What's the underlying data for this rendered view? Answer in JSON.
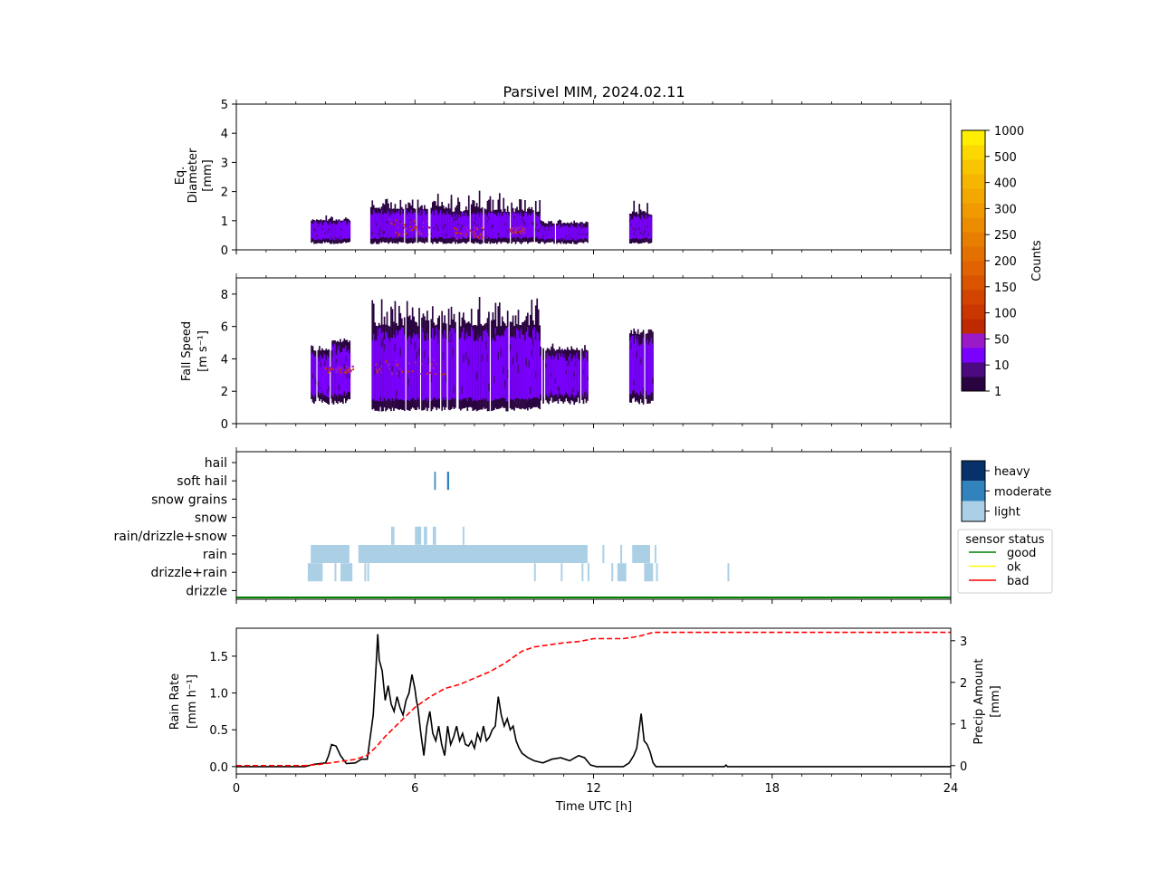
{
  "chart_data": [
    {
      "type": "heatmap",
      "title": "Parsivel MIM, 2024.02.11",
      "ylabel": [
        "Eq.",
        "Diameter",
        "[mm]"
      ],
      "ylim": [
        0,
        5
      ],
      "yticks": [
        0,
        1,
        2,
        3,
        4,
        5
      ],
      "xlim": [
        0,
        24
      ],
      "segments": [
        {
          "t0": 2.5,
          "t1": 3.2,
          "ylo": 0.3,
          "yhi": 1.0,
          "peak": 1.2
        },
        {
          "t0": 3.2,
          "t1": 3.8,
          "ylo": 0.3,
          "yhi": 1.0,
          "peak": 1.2
        },
        {
          "t0": 4.5,
          "t1": 7.2,
          "ylo": 0.3,
          "yhi": 1.4,
          "peak": 2.0
        },
        {
          "t0": 7.2,
          "t1": 10.2,
          "ylo": 0.3,
          "yhi": 1.3,
          "peak": 2.2
        },
        {
          "t0": 10.2,
          "t1": 11.8,
          "ylo": 0.3,
          "yhi": 0.9,
          "peak": 1.1
        },
        {
          "t0": 13.2,
          "t1": 14.0,
          "ylo": 0.3,
          "yhi": 1.2,
          "peak": 1.8
        }
      ],
      "hotspots": [
        {
          "t": 5.8,
          "y": 0.8,
          "r": 0.7
        },
        {
          "t": 7.8,
          "y": 0.6,
          "r": 0.5
        },
        {
          "t": 9.4,
          "y": 0.7,
          "r": 0.3
        }
      ]
    },
    {
      "type": "heatmap",
      "ylabel": [
        "Fall Speed",
        "[m s⁻¹]"
      ],
      "ylim": [
        0,
        9
      ],
      "yticks": [
        0,
        2,
        4,
        6,
        8
      ],
      "xlim": [
        0,
        24
      ],
      "segments": [
        {
          "t0": 2.5,
          "t1": 3.2,
          "ylo": 1.5,
          "yhi": 4.5,
          "peak": 5.0
        },
        {
          "t0": 3.2,
          "t1": 3.8,
          "ylo": 1.5,
          "yhi": 5.0,
          "peak": 5.5
        },
        {
          "t0": 4.5,
          "t1": 7.2,
          "ylo": 1.0,
          "yhi": 6.0,
          "peak": 8.0
        },
        {
          "t0": 7.2,
          "t1": 10.2,
          "ylo": 1.0,
          "yhi": 6.0,
          "peak": 8.0
        },
        {
          "t0": 10.2,
          "t1": 11.8,
          "ylo": 1.5,
          "yhi": 4.5,
          "peak": 5.0
        },
        {
          "t0": 13.2,
          "t1": 14.0,
          "ylo": 1.5,
          "yhi": 5.5,
          "peak": 6.0
        }
      ],
      "hotspots": [
        {
          "t": 5.8,
          "y": 3.5,
          "r": 1.2
        },
        {
          "t": 3.4,
          "y": 3.4,
          "r": 0.5
        }
      ]
    },
    {
      "type": "heatmap",
      "ycategories": [
        "hail",
        "soft hail",
        "snow grains",
        "snow",
        "rain/drizzle+snow",
        "rain",
        "drizzle+rain",
        "drizzle"
      ],
      "xlim": [
        0,
        24
      ],
      "blocks": [
        {
          "cat": "rain",
          "t0": 2.5,
          "t1": 3.8,
          "level": "light"
        },
        {
          "cat": "rain",
          "t0": 4.1,
          "t1": 11.8,
          "level": "light"
        },
        {
          "cat": "rain",
          "t0": 13.3,
          "t1": 13.9,
          "level": "light"
        },
        {
          "cat": "drizzle+rain",
          "t0": 2.4,
          "t1": 2.9,
          "level": "light"
        },
        {
          "cat": "drizzle+rain",
          "t0": 3.5,
          "t1": 3.9,
          "level": "light"
        },
        {
          "cat": "drizzle+rain",
          "t0": 12.8,
          "t1": 13.1,
          "level": "light"
        },
        {
          "cat": "drizzle+rain",
          "t0": 13.7,
          "t1": 14.0,
          "level": "light"
        },
        {
          "cat": "soft hail",
          "t0": 6.65,
          "t1": 6.7,
          "level": "moderate"
        },
        {
          "cat": "soft hail",
          "t0": 7.08,
          "t1": 7.15,
          "level": "moderate"
        }
      ],
      "ticks": [
        {
          "cat": "rain/drizzle+snow",
          "t": [
            5.2,
            5.25,
            6.0,
            6.05,
            6.1,
            6.15,
            6.3,
            6.35,
            6.6,
            6.65,
            7.6
          ]
        },
        {
          "cat": "drizzle+rain",
          "t": [
            3.3,
            4.3,
            4.4,
            10.0,
            10.9,
            11.6,
            11.8,
            12.6,
            14.1,
            16.5
          ]
        },
        {
          "cat": "rain",
          "t": [
            12.3,
            12.9,
            14.05
          ]
        }
      ],
      "legend": {
        "levels": [
          "heavy",
          "moderate",
          "light"
        ],
        "colors": [
          "#08306b",
          "#3182bd",
          "#abd0e6"
        ]
      },
      "sensor_status": {
        "title": "sensor status",
        "entries": [
          "good",
          "ok",
          "bad"
        ],
        "colors": [
          "#008000",
          "#ffff00",
          "#ff0000"
        ],
        "current": "good"
      }
    },
    {
      "type": "line",
      "xlabel": "Time UTC [h]",
      "xlim": [
        0,
        24
      ],
      "xticks": [
        0,
        6,
        12,
        18,
        24
      ],
      "ylabel": [
        "Rain Rate",
        "[mm h⁻¹]"
      ],
      "ylim": [
        -0.1,
        1.88
      ],
      "yticks": [
        "0.0",
        "0.5",
        "1.0",
        "1.5"
      ],
      "y2label": [
        "Precip Amount",
        "[mm]"
      ],
      "y2lim": [
        -0.2,
        3.3
      ],
      "y2ticks": [
        0,
        1,
        2,
        3
      ],
      "series": [
        {
          "name": "Rain Rate",
          "color": "#000000",
          "x": [
            0,
            2.3,
            2.6,
            3.0,
            3.1,
            3.2,
            3.35,
            3.5,
            3.7,
            4.0,
            4.2,
            4.4,
            4.5,
            4.6,
            4.7,
            4.75,
            4.8,
            4.9,
            5.0,
            5.1,
            5.2,
            5.3,
            5.4,
            5.5,
            5.6,
            5.7,
            5.8,
            5.9,
            6.0,
            6.05,
            6.1,
            6.2,
            6.3,
            6.4,
            6.5,
            6.6,
            6.7,
            6.8,
            6.9,
            7.0,
            7.1,
            7.2,
            7.3,
            7.4,
            7.5,
            7.6,
            7.7,
            7.8,
            7.9,
            8.0,
            8.1,
            8.2,
            8.3,
            8.4,
            8.5,
            8.6,
            8.7,
            8.8,
            8.9,
            9.0,
            9.1,
            9.2,
            9.3,
            9.4,
            9.5,
            9.6,
            9.8,
            10.0,
            10.3,
            10.6,
            10.9,
            11.2,
            11.5,
            11.7,
            11.9,
            12.1,
            13.0,
            13.2,
            13.35,
            13.45,
            13.5,
            13.6,
            13.7,
            13.8,
            13.9,
            14.0,
            14.1,
            14.3,
            16.4,
            16.45,
            16.5,
            24
          ],
          "y": [
            0,
            0,
            0.03,
            0.05,
            0.15,
            0.3,
            0.28,
            0.15,
            0.04,
            0.05,
            0.1,
            0.1,
            0.4,
            0.7,
            1.4,
            1.8,
            1.45,
            1.3,
            0.9,
            1.1,
            0.85,
            0.75,
            0.95,
            0.8,
            0.7,
            0.9,
            1.0,
            1.25,
            1.05,
            0.9,
            0.8,
            0.45,
            0.15,
            0.55,
            0.75,
            0.45,
            0.35,
            0.55,
            0.3,
            0.15,
            0.55,
            0.3,
            0.4,
            0.55,
            0.35,
            0.45,
            0.3,
            0.28,
            0.35,
            0.25,
            0.45,
            0.35,
            0.55,
            0.35,
            0.4,
            0.5,
            0.55,
            0.95,
            0.7,
            0.55,
            0.65,
            0.5,
            0.55,
            0.35,
            0.25,
            0.18,
            0.12,
            0.08,
            0.05,
            0.1,
            0.12,
            0.08,
            0.15,
            0.12,
            0.02,
            0,
            0,
            0.05,
            0.15,
            0.25,
            0.4,
            0.72,
            0.35,
            0.3,
            0.2,
            0.05,
            0,
            0,
            0,
            0.02,
            0,
            0
          ]
        },
        {
          "name": "Precip Amount",
          "color": "#ff0000",
          "axis": "y2",
          "x": [
            0,
            2.3,
            2.8,
            3.5,
            4.0,
            4.4,
            4.7,
            5.0,
            5.5,
            6.0,
            6.5,
            7.0,
            7.5,
            8.0,
            8.5,
            9.0,
            9.3,
            9.6,
            10.0,
            10.5,
            11.0,
            11.5,
            11.8,
            12.0,
            13.0,
            13.3,
            13.6,
            13.9,
            14.0,
            24
          ],
          "y": [
            0,
            0,
            0.03,
            0.1,
            0.15,
            0.25,
            0.45,
            0.7,
            1.05,
            1.4,
            1.65,
            1.85,
            1.95,
            2.1,
            2.25,
            2.45,
            2.6,
            2.75,
            2.85,
            2.9,
            2.95,
            2.98,
            3.02,
            3.05,
            3.05,
            3.08,
            3.12,
            3.18,
            3.2,
            3.2
          ]
        }
      ]
    }
  ],
  "colorbar": {
    "label": "Counts",
    "ticks": [
      "1",
      "10",
      "50",
      "100",
      "150",
      "200",
      "250",
      "300",
      "400",
      "500",
      "1000"
    ],
    "colors": [
      "#2a0440",
      "#4b0a80",
      "#7a00ff",
      "#9b1ac8",
      "#c02800",
      "#c93600",
      "#d24400",
      "#da5400",
      "#e06200",
      "#e47000",
      "#e87e00",
      "#ec8c00",
      "#f09a00",
      "#f3a800",
      "#f6b600",
      "#f9c400",
      "#fcd800",
      "#ffee00"
    ]
  }
}
